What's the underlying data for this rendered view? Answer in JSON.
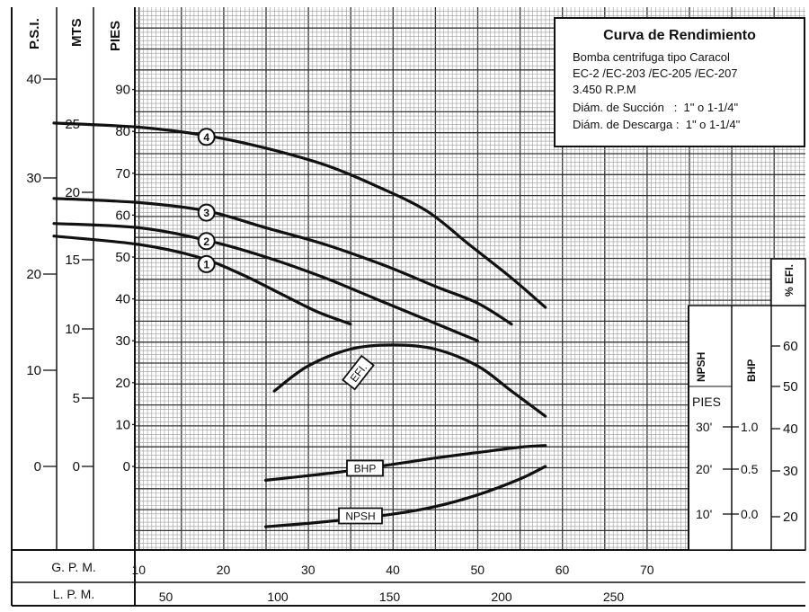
{
  "chart_data": {
    "type": "line",
    "title": "Curva de Rendimiento",
    "legend": {
      "title": "Curva de Rendimiento",
      "lines": [
        "Bomba centrifuga tipo Caracol",
        "EC-2 /EC-203 /EC-205 /EC-207",
        "3.450 R.P.M",
        "Diám. de Succión   :  1\" o 1-1/4\"",
        "Diám. de Descarga :  1\" o 1-1/4\""
      ]
    },
    "left_axes": {
      "psi": {
        "title": "P.S.I.",
        "ticks": [
          "40",
          "30",
          "20",
          "10",
          "0"
        ]
      },
      "mts": {
        "title": "MTS",
        "ticks": [
          "25",
          "20",
          "15",
          "10",
          "5",
          "0"
        ]
      },
      "pies": {
        "title": "PIES",
        "ticks": [
          "90",
          "80",
          "70",
          "60",
          "50",
          "40",
          "30",
          "20",
          "10",
          "0"
        ]
      }
    },
    "right_axes": {
      "npsh": {
        "title": "NPSH",
        "unit": "PIES",
        "ticks": [
          "30'",
          "20'",
          "10'"
        ]
      },
      "bhp": {
        "title": "BHP",
        "ticks": [
          "1.0",
          "0.5",
          "0.0"
        ]
      },
      "efi": {
        "title": "% EFI.",
        "ticks": [
          "60",
          "50",
          "40",
          "30",
          "20"
        ]
      }
    },
    "x_axis_gpm": {
      "label": "G. P. M.",
      "ticks": [
        "10",
        "20",
        "30",
        "40",
        "50",
        "60",
        "70"
      ],
      "range": [
        0,
        80
      ]
    },
    "x_axis_lpm": {
      "label": "L. P. M.",
      "ticks": [
        "50",
        "100",
        "150",
        "200",
        "250"
      ]
    },
    "head_ylim_ft": [
      -12,
      101
    ],
    "series": [
      {
        "name": "1",
        "axis": "head_ft",
        "points": [
          [
            0,
            55
          ],
          [
            10,
            53
          ],
          [
            17,
            50
          ],
          [
            22,
            46
          ],
          [
            27,
            41
          ],
          [
            31,
            37
          ],
          [
            35,
            34
          ]
        ]
      },
      {
        "name": "2",
        "axis": "head_ft",
        "points": [
          [
            0,
            58
          ],
          [
            10,
            57
          ],
          [
            18,
            54
          ],
          [
            25,
            50
          ],
          [
            32,
            45
          ],
          [
            38,
            40
          ],
          [
            44,
            35
          ],
          [
            50,
            30
          ]
        ]
      },
      {
        "name": "3",
        "axis": "head_ft",
        "points": [
          [
            0,
            64
          ],
          [
            10,
            63
          ],
          [
            18,
            61
          ],
          [
            25,
            57
          ],
          [
            32,
            53
          ],
          [
            39,
            48
          ],
          [
            45,
            43
          ],
          [
            50,
            39
          ],
          [
            54,
            34
          ]
        ]
      },
      {
        "name": "4",
        "axis": "head_ft",
        "points": [
          [
            0,
            82
          ],
          [
            10,
            81
          ],
          [
            18,
            79
          ],
          [
            25,
            76
          ],
          [
            32,
            72
          ],
          [
            38,
            67
          ],
          [
            44,
            61
          ],
          [
            49,
            53
          ],
          [
            54,
            45
          ],
          [
            58,
            38
          ]
        ]
      },
      {
        "name": "EFI.",
        "axis": "head_ft",
        "points": [
          [
            26,
            18
          ],
          [
            30,
            24
          ],
          [
            35,
            28
          ],
          [
            40,
            29
          ],
          [
            45,
            28
          ],
          [
            50,
            24
          ],
          [
            54,
            18
          ],
          [
            58,
            12
          ]
        ]
      },
      {
        "name": "BHP",
        "axis": "head_ft",
        "points": [
          [
            25,
            -3.3
          ],
          [
            30,
            -2.2
          ],
          [
            35,
            -1.0
          ],
          [
            40,
            0.5
          ],
          [
            45,
            2.0
          ],
          [
            50,
            3.3
          ],
          [
            55,
            4.6
          ],
          [
            58,
            5.0
          ]
        ]
      },
      {
        "name": "NPSH",
        "axis": "head_ft",
        "points": [
          [
            25,
            -14.4
          ],
          [
            30,
            -13.6
          ],
          [
            35,
            -12.6
          ],
          [
            40,
            -11.4
          ],
          [
            45,
            -9.6
          ],
          [
            50,
            -6.8
          ],
          [
            55,
            -3.0
          ],
          [
            58,
            0.0
          ]
        ]
      }
    ]
  }
}
